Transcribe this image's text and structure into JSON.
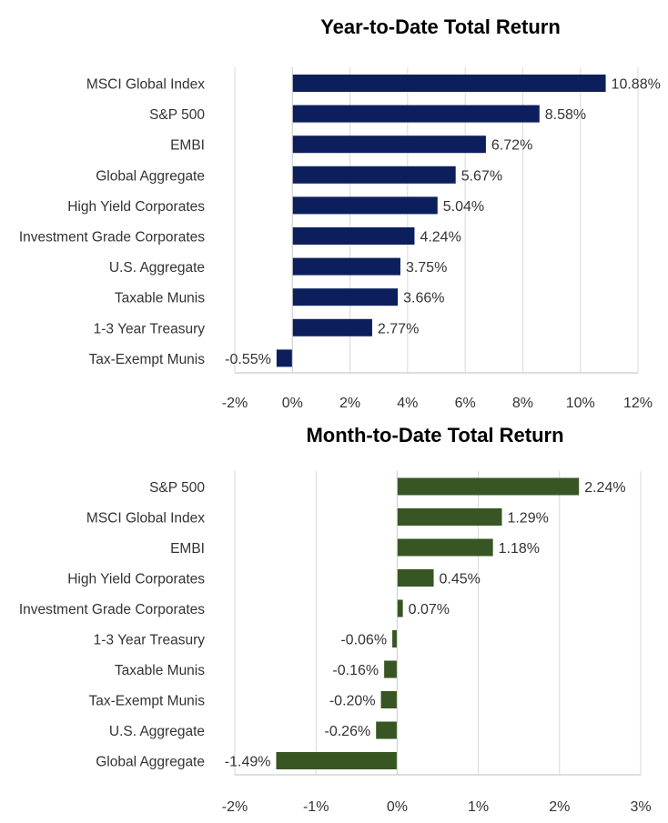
{
  "chart_data": [
    {
      "type": "bar",
      "orientation": "horizontal",
      "title": "Year-to-Date Total Return",
      "categories": [
        "MSCI Global Index",
        "S&P 500",
        "EMBI",
        "Global Aggregate",
        "High Yield Corporates",
        "Investment Grade Corporates",
        "U.S. Aggregate",
        "Taxable Munis",
        "1-3 Year Treasury",
        "Tax-Exempt Munis"
      ],
      "values": [
        10.88,
        8.58,
        6.72,
        5.67,
        5.04,
        4.24,
        3.75,
        3.66,
        2.77,
        -0.55
      ],
      "data_labels": [
        "10.88%",
        "8.58%",
        "6.72%",
        "5.67%",
        "5.04%",
        "4.24%",
        "3.75%",
        "3.66%",
        "2.77%",
        "-0.55%"
      ],
      "xlim": [
        -2,
        12
      ],
      "ticks": [
        -2,
        0,
        2,
        4,
        6,
        8,
        10,
        12
      ],
      "tick_labels": [
        "-2%",
        "0%",
        "2%",
        "4%",
        "6%",
        "8%",
        "10%",
        "12%"
      ],
      "bar_color": "#0c1f5c",
      "grid": true,
      "xlabel": "",
      "ylabel": ""
    },
    {
      "type": "bar",
      "orientation": "horizontal",
      "title": "Month-to-Date Total Return",
      "categories": [
        "S&P 500",
        "MSCI Global Index",
        "EMBI",
        "High Yield Corporates",
        "Investment Grade Corporates",
        "1-3 Year Treasury",
        "Taxable Munis",
        "Tax-Exempt Munis",
        "U.S. Aggregate",
        "Global Aggregate"
      ],
      "values": [
        2.24,
        1.29,
        1.18,
        0.45,
        0.07,
        -0.06,
        -0.16,
        -0.2,
        -0.26,
        -1.49
      ],
      "data_labels": [
        "2.24%",
        "1.29%",
        "1.18%",
        "0.45%",
        "0.07%",
        "-0.06%",
        "-0.16%",
        "-0.20%",
        "-0.26%",
        "-1.49%"
      ],
      "xlim": [
        -2,
        3
      ],
      "ticks": [
        -2,
        -1,
        0,
        1,
        2,
        3
      ],
      "tick_labels": [
        "-2%",
        "-1%",
        "0%",
        "1%",
        "2%",
        "3%"
      ],
      "bar_color": "#375623",
      "grid": true,
      "xlabel": "",
      "ylabel": ""
    }
  ]
}
